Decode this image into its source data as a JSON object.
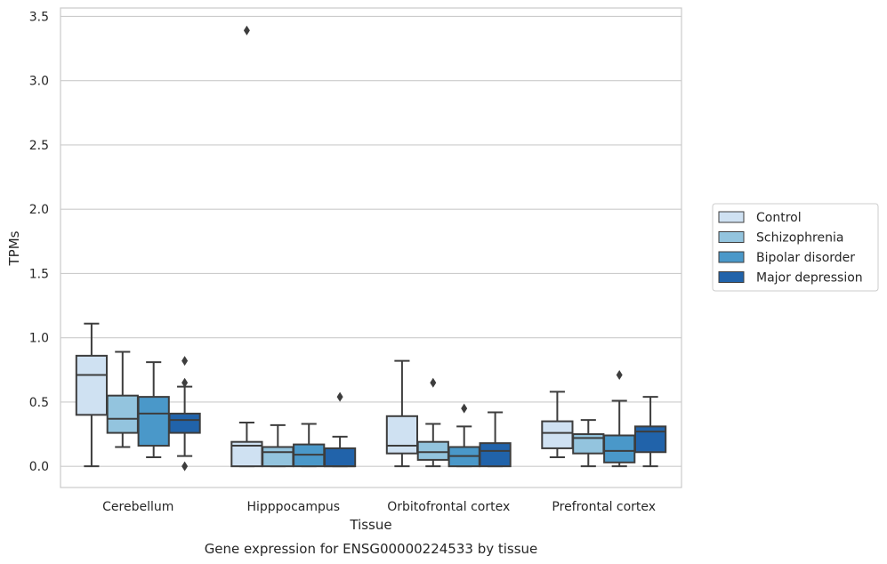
{
  "chart_data": {
    "type": "box",
    "xlabel": "Tissue",
    "ylabel": "TPMs",
    "caption": "Gene expression for ENSG00000224533 by tissue",
    "ylim": [
      -0.165,
      3.565
    ],
    "yticks": [
      "0.0",
      "0.5",
      "1.0",
      "1.5",
      "2.0",
      "2.5",
      "3.0",
      "3.5"
    ],
    "grid": true,
    "legend_position": "right",
    "categories": [
      "Cerebellum",
      "Hipppocampus",
      "Orbitofrontal cortex",
      "Prefrontal cortex"
    ],
    "series": [
      {
        "name": "Control",
        "color": "#cfe1f2",
        "boxes": [
          {
            "whislo": 0.0,
            "q1": 0.4,
            "med": 0.71,
            "q3": 0.86,
            "whishi": 1.11,
            "fliers": []
          },
          {
            "whislo": 0.0,
            "q1": 0.0,
            "med": 0.16,
            "q3": 0.19,
            "whishi": 0.34,
            "fliers": [
              3.39
            ]
          },
          {
            "whislo": 0.0,
            "q1": 0.1,
            "med": 0.16,
            "q3": 0.39,
            "whishi": 0.82,
            "fliers": []
          },
          {
            "whislo": 0.07,
            "q1": 0.14,
            "med": 0.26,
            "q3": 0.35,
            "whishi": 0.58,
            "fliers": []
          }
        ]
      },
      {
        "name": "Schizophrenia",
        "color": "#93c4de",
        "boxes": [
          {
            "whislo": 0.15,
            "q1": 0.26,
            "med": 0.37,
            "q3": 0.55,
            "whishi": 0.89,
            "fliers": []
          },
          {
            "whislo": 0.0,
            "q1": 0.0,
            "med": 0.11,
            "q3": 0.15,
            "whishi": 0.32,
            "fliers": []
          },
          {
            "whislo": 0.0,
            "q1": 0.05,
            "med": 0.11,
            "q3": 0.19,
            "whishi": 0.33,
            "fliers": [
              0.65
            ]
          },
          {
            "whislo": 0.0,
            "q1": 0.1,
            "med": 0.22,
            "q3": 0.25,
            "whishi": 0.36,
            "fliers": []
          }
        ]
      },
      {
        "name": "Bipolar disorder",
        "color": "#4a98c9",
        "boxes": [
          {
            "whislo": 0.07,
            "q1": 0.16,
            "med": 0.41,
            "q3": 0.54,
            "whishi": 0.81,
            "fliers": []
          },
          {
            "whislo": 0.0,
            "q1": 0.0,
            "med": 0.09,
            "q3": 0.17,
            "whishi": 0.33,
            "fliers": []
          },
          {
            "whislo": 0.0,
            "q1": 0.0,
            "med": 0.08,
            "q3": 0.15,
            "whishi": 0.31,
            "fliers": [
              0.45
            ]
          },
          {
            "whislo": 0.0,
            "q1": 0.03,
            "med": 0.12,
            "q3": 0.24,
            "whishi": 0.51,
            "fliers": [
              0.71
            ]
          }
        ]
      },
      {
        "name": "Major depression",
        "color": "#2163aa",
        "boxes": [
          {
            "whislo": 0.08,
            "q1": 0.26,
            "med": 0.36,
            "q3": 0.41,
            "whishi": 0.62,
            "fliers": [
              0.82,
              0.65,
              0.0
            ]
          },
          {
            "whislo": 0.0,
            "q1": 0.0,
            "med": 0.0,
            "q3": 0.14,
            "whishi": 0.23,
            "fliers": [
              0.54
            ]
          },
          {
            "whislo": 0.0,
            "q1": 0.0,
            "med": 0.12,
            "q3": 0.18,
            "whishi": 0.42,
            "fliers": []
          },
          {
            "whislo": 0.0,
            "q1": 0.11,
            "med": 0.27,
            "q3": 0.31,
            "whishi": 0.54,
            "fliers": []
          }
        ]
      }
    ]
  },
  "style": {
    "grid_color": "#cccccc",
    "spine_color": "#cccccc",
    "line_color": "#3d3d3d",
    "text_color": "#262626"
  }
}
